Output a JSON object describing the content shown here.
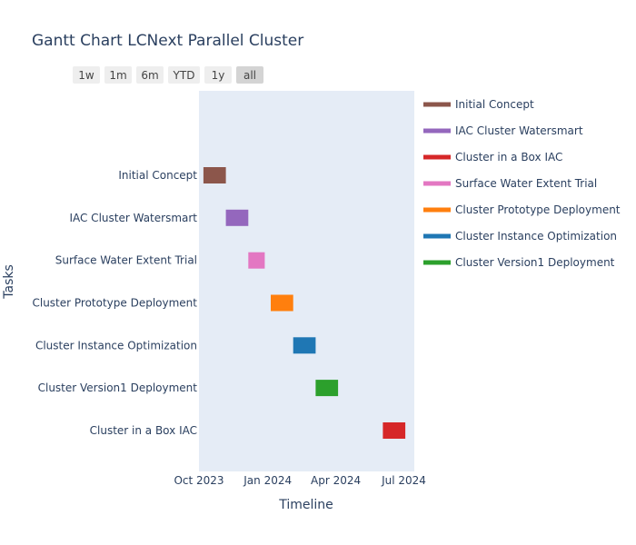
{
  "chart_data": {
    "type": "gantt",
    "title": "Gantt Chart LCNext Parallel Cluster",
    "xlabel": "Timeline",
    "ylabel": "Tasks",
    "x_ticks": [
      "Oct 2023",
      "Jan 2024",
      "Apr 2024",
      "Jul 2024"
    ],
    "x_range": [
      "2023-10-01",
      "2024-07-15"
    ],
    "range_selector": [
      "1w",
      "1m",
      "6m",
      "YTD",
      "1y",
      "all"
    ],
    "range_selector_active": "all",
    "tasks": [
      {
        "name": "Initial Concept",
        "start": "2023-10-07",
        "end": "2023-11-06",
        "color": "#8c564b"
      },
      {
        "name": "IAC Cluster Watersmart",
        "start": "2023-11-06",
        "end": "2023-12-06",
        "color": "#9467bd"
      },
      {
        "name": "Surface Water Extent Trial",
        "start": "2023-12-06",
        "end": "2023-12-28",
        "color": "#e377c2"
      },
      {
        "name": "Cluster Prototype Deployment",
        "start": "2024-01-05",
        "end": "2024-02-04",
        "color": "#ff7f0e"
      },
      {
        "name": "Cluster Instance Optimization",
        "start": "2024-02-04",
        "end": "2024-03-05",
        "color": "#1f77b4"
      },
      {
        "name": "Cluster Version1 Deployment",
        "start": "2024-03-05",
        "end": "2024-04-04",
        "color": "#2ca02c"
      },
      {
        "name": "Cluster in a Box IAC",
        "start": "2024-06-03",
        "end": "2024-07-03",
        "color": "#d62728"
      }
    ],
    "legend": [
      {
        "name": "Initial Concept",
        "color": "#8c564b"
      },
      {
        "name": "IAC Cluster Watersmart",
        "color": "#9467bd"
      },
      {
        "name": "Cluster in a Box IAC",
        "color": "#d62728"
      },
      {
        "name": "Surface Water Extent Trial",
        "color": "#e377c2"
      },
      {
        "name": "Cluster Prototype Deployment",
        "color": "#ff7f0e"
      },
      {
        "name": "Cluster Instance Optimization",
        "color": "#1f77b4"
      },
      {
        "name": "Cluster Version1 Deployment",
        "color": "#2ca02c"
      }
    ],
    "legend_position": "right",
    "plot_background": "#e5ecf6",
    "grid": false
  }
}
